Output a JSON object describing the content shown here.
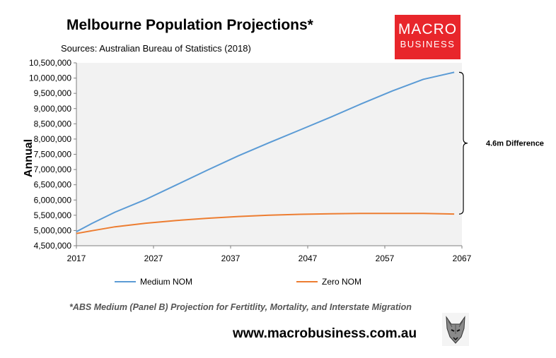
{
  "chart_data": {
    "type": "line",
    "title": "Melbourne Population Projections*",
    "subtitle": "Sources: Australian Bureau of Statistics (2018)",
    "ylabel": "Annual",
    "xlabel": "",
    "xlim": [
      2017,
      2067
    ],
    "ylim": [
      4500000,
      10500000
    ],
    "x_ticks": [
      "2017",
      "2027",
      "2037",
      "2047",
      "2057",
      "2067"
    ],
    "y_ticks": [
      "4,500,000",
      "5,000,000",
      "5,500,000",
      "6,000,000",
      "6,500,000",
      "7,000,000",
      "7,500,000",
      "8,000,000",
      "8,500,000",
      "9,000,000",
      "9,500,000",
      "10,000,000",
      "10,500,000"
    ],
    "grid": false,
    "legend_position": "bottom",
    "x": [
      2017,
      2019,
      2022,
      2026,
      2030,
      2034,
      2038,
      2042,
      2046,
      2050,
      2054,
      2058,
      2062,
      2066
    ],
    "series": [
      {
        "name": "Medium NOM",
        "color": "#5b9bd5",
        "values": [
          4960000,
          5230000,
          5600000,
          6020000,
          6500000,
          6980000,
          7450000,
          7880000,
          8300000,
          8720000,
          9160000,
          9580000,
          9960000,
          10190000
        ]
      },
      {
        "name": "Zero NOM",
        "color": "#ed7d31",
        "values": [
          4900000,
          4990000,
          5120000,
          5240000,
          5330000,
          5400000,
          5460000,
          5500000,
          5530000,
          5550000,
          5560000,
          5560000,
          5560000,
          5540000
        ]
      }
    ],
    "annotation": {
      "text": "4.6m Difference",
      "from": 5540000,
      "to": 10190000
    }
  },
  "footnote": "*ABS Medium (Panel B) Projection for Fertitlity, Mortality, and Interstate Migration",
  "website": "www.macrobusiness.com.au",
  "logo": {
    "line1": "MACRO",
    "line2": "BUSINESS",
    "color": "#e8262b"
  }
}
